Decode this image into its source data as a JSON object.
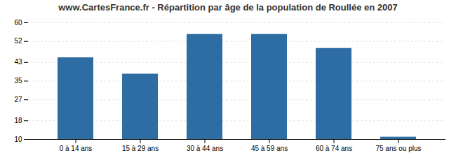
{
  "chart_data": {
    "type": "bar",
    "title": "www.CartesFrance.fr - Répartition par âge de la population de Roullée en 2007",
    "categories": [
      "0 à 14 ans",
      "15 à 29 ans",
      "30 à 44 ans",
      "45 à 59 ans",
      "60 à 74 ans",
      "75 ans ou plus"
    ],
    "values": [
      45,
      38,
      55,
      55,
      49,
      11
    ],
    "color": "#2e6da4",
    "ylim": [
      10,
      60
    ],
    "yticks": [
      10,
      18,
      27,
      35,
      43,
      52,
      60
    ],
    "grid": true
  }
}
